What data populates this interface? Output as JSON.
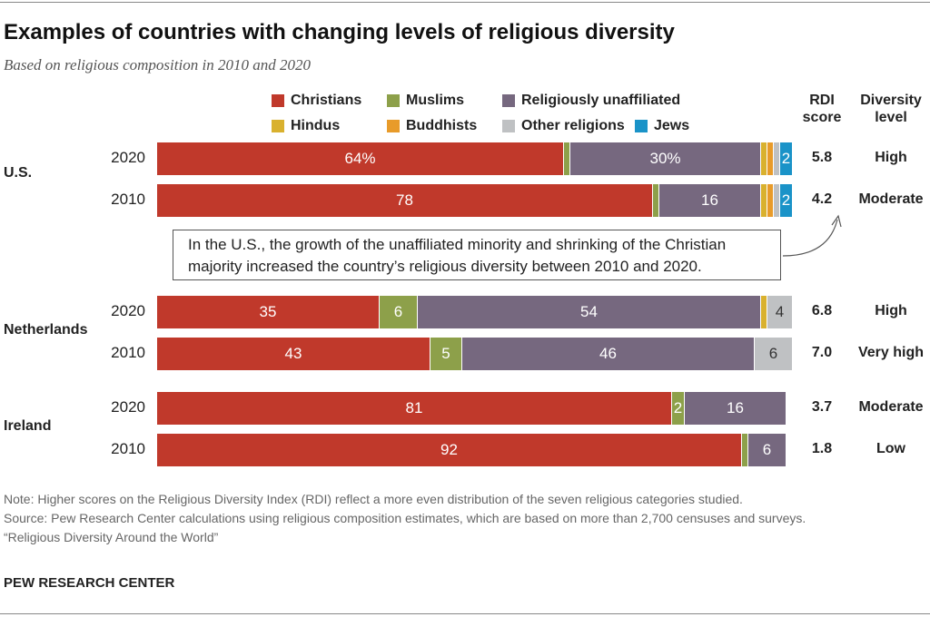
{
  "chart_data": {
    "type": "bar",
    "orientation": "horizontal",
    "stacked": true,
    "title": "Examples of countries with changing levels of religious diversity",
    "subtitle": "Based on religious composition in 2010 and 2020",
    "xlim": [
      0,
      100
    ],
    "legend": [
      "Christians",
      "Muslims",
      "Religiously unaffiliated",
      "Hindus",
      "Buddhists",
      "Other religions",
      "Jews"
    ],
    "colors": [
      "#c0392b",
      "#8da04a",
      "#76687f",
      "#d9b12e",
      "#e89b2a",
      "#bfc1c3",
      "#1a93c8"
    ],
    "column_headers": {
      "rdi": "RDI\nscore",
      "level": "Diversity\nlevel"
    },
    "rows": [
      {
        "country": "U.S.",
        "year": "2020",
        "values": [
          64,
          1,
          30,
          1,
          1,
          1,
          2
        ],
        "labels": [
          "64%",
          "",
          "30%",
          "",
          "",
          "",
          "2"
        ],
        "rdi": "5.8",
        "level": "High"
      },
      {
        "country": "",
        "year": "2010",
        "values": [
          78,
          1,
          16,
          1,
          1,
          1,
          2
        ],
        "labels": [
          "78",
          "",
          "16",
          "",
          "",
          "",
          "2"
        ],
        "rdi": "4.2",
        "level": "Moderate"
      },
      {
        "country": "Netherlands",
        "year": "2020",
        "values": [
          35,
          6,
          54,
          1,
          0,
          4,
          0
        ],
        "labels": [
          "35",
          "6",
          "54",
          "",
          "",
          "4",
          ""
        ],
        "rdi": "6.8",
        "level": "High"
      },
      {
        "country": "",
        "year": "2010",
        "values": [
          43,
          5,
          46,
          0,
          0,
          6,
          0
        ],
        "labels": [
          "43",
          "5",
          "46",
          "",
          "",
          "6",
          ""
        ],
        "rdi": "7.0",
        "level": "Very high"
      },
      {
        "country": "Ireland",
        "year": "2020",
        "values": [
          81,
          2,
          16,
          0,
          0,
          0,
          0
        ],
        "labels": [
          "81",
          "2",
          "16",
          "",
          "",
          "",
          ""
        ],
        "rdi": "3.7",
        "level": "Moderate"
      },
      {
        "country": "",
        "year": "2010",
        "values": [
          92,
          1,
          6,
          0,
          0,
          0,
          0
        ],
        "labels": [
          "92",
          "",
          "6",
          "",
          "",
          "",
          ""
        ],
        "rdi": "1.8",
        "level": "Low"
      }
    ],
    "annotation": "In the U.S., the growth of the unaffiliated minority and shrinking of the Christian majority increased the country’s religious diversity between 2010 and 2020."
  },
  "footer": {
    "note": "Note: Higher scores on the Religious Diversity Index (RDI) reflect a more even distribution of the seven religious categories studied.",
    "source": "Source: Pew Research Center calculations using religious composition estimates, which are based on more than 2,700 censuses and surveys.",
    "report": "“Religious Diversity Around the World”",
    "brand": "PEW RESEARCH CENTER"
  }
}
